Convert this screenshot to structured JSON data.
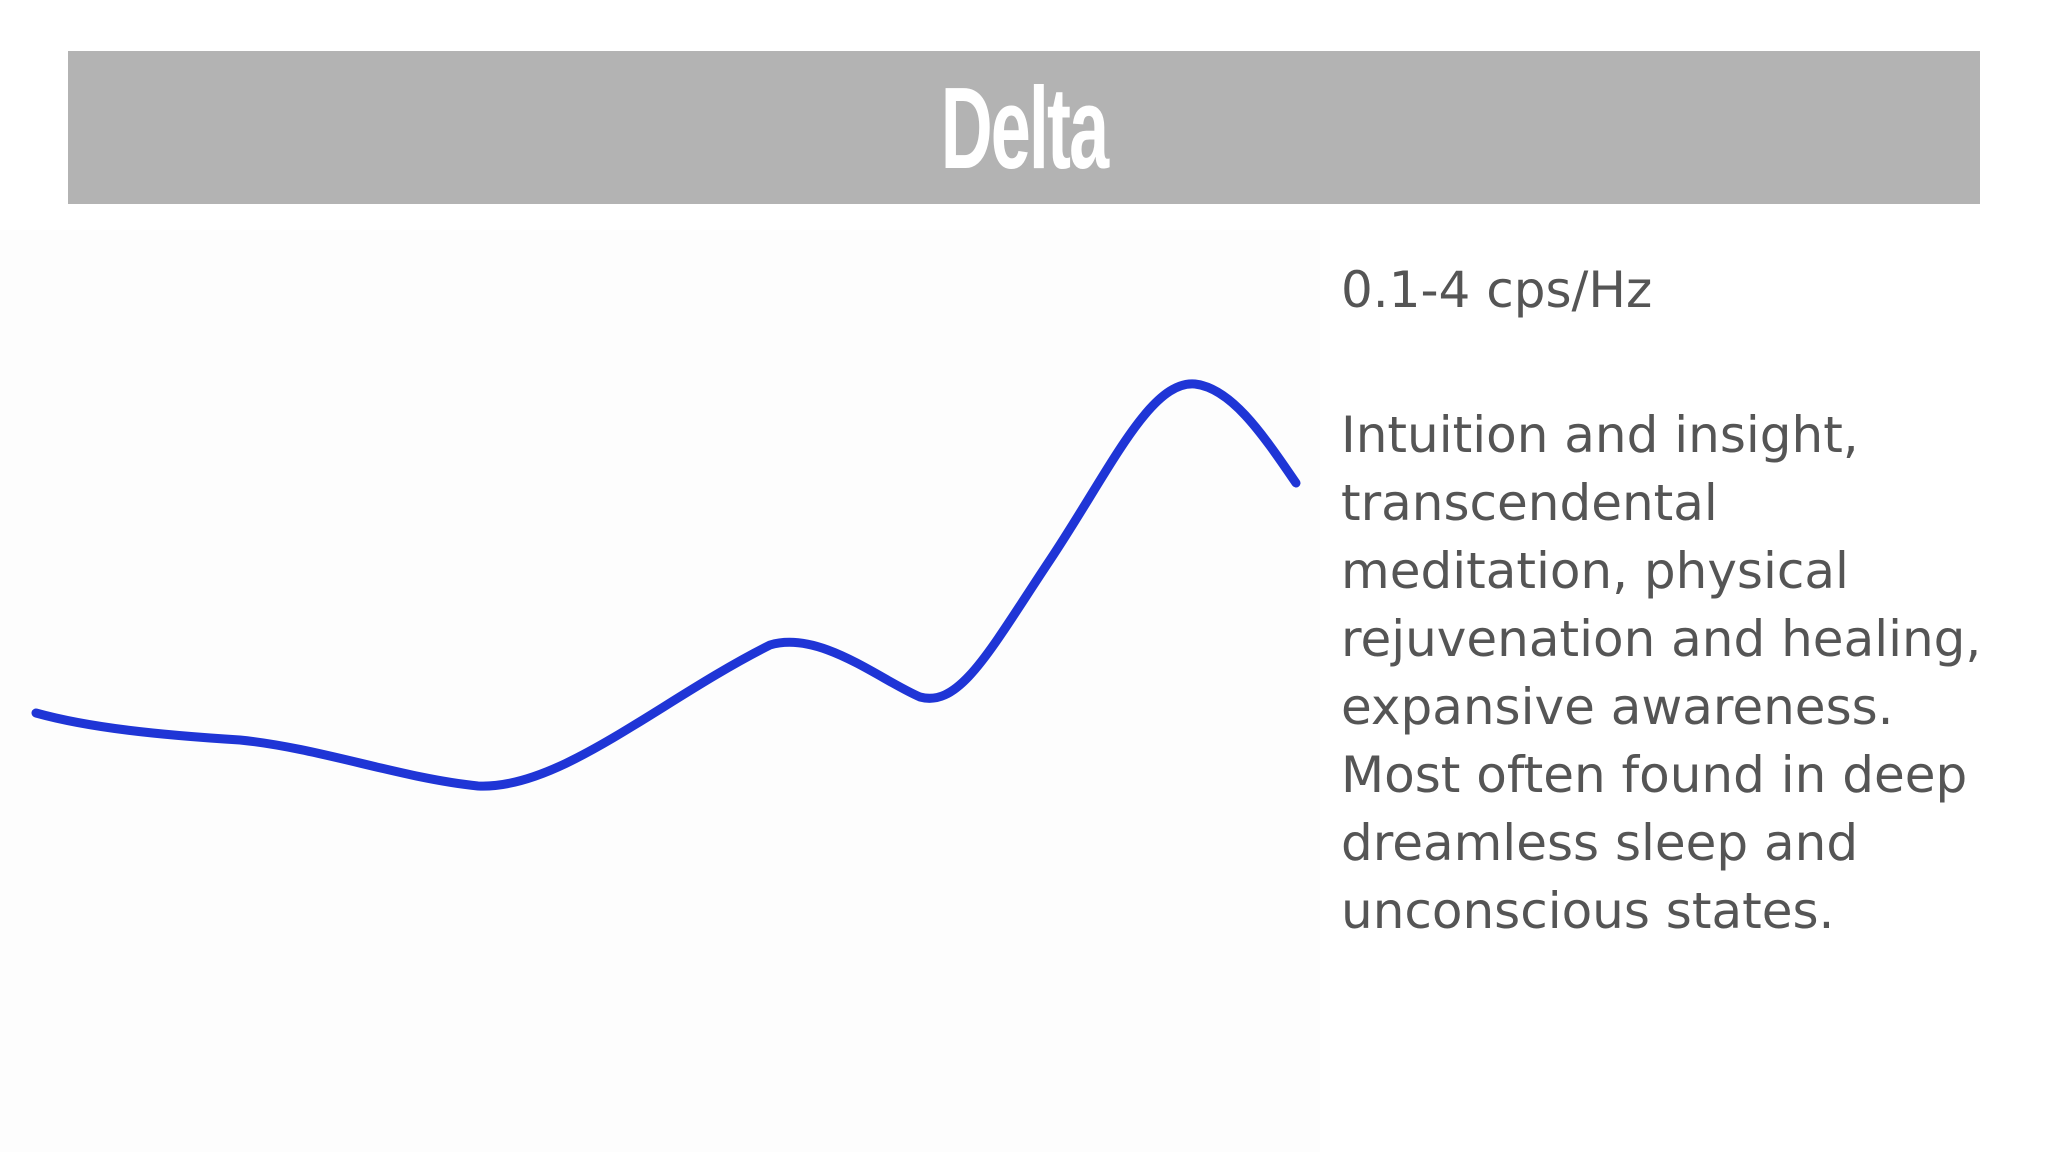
{
  "slide": {
    "title": "Delta",
    "frequency": "0.1-4 cps/Hz",
    "description_lines": [
      "Intuition and insight,",
      "transcendental",
      "meditation, physical",
      "rejuvenation and healing,",
      "expansive awareness.",
      "Most often found in deep",
      "dreamless sleep and",
      "unconscious states."
    ]
  },
  "colors": {
    "title_bar": "#b3b3b3",
    "title_text": "#ffffff",
    "body_text": "#555555",
    "wave": "#1f35d6"
  }
}
